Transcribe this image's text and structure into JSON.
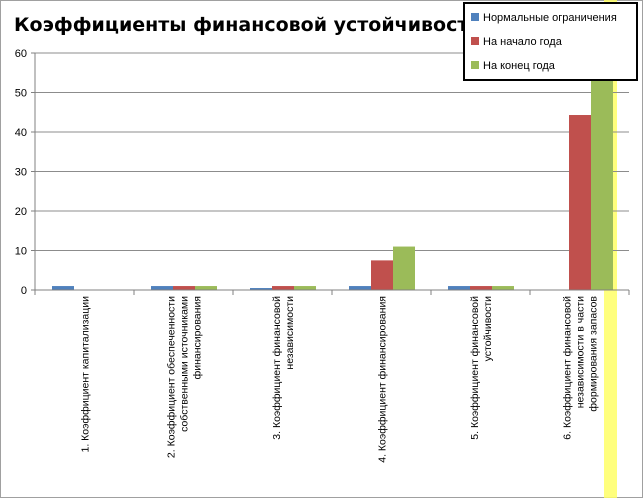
{
  "chart_data": {
    "type": "bar",
    "title": "Коэффициенты финансовой устойчивости",
    "xlabel": "",
    "ylabel": "",
    "ylim": [
      0,
      60
    ],
    "yticks": [
      0,
      10,
      20,
      30,
      40,
      50,
      60
    ],
    "grid": true,
    "legend_position": "top-right",
    "categories": [
      [
        "1. Коэффициент капитализации"
      ],
      [
        "2. Коэффициент обеспеченности",
        "собственными источниками",
        "финансирования"
      ],
      [
        "3. Коэффициент финансовой",
        "независимости"
      ],
      [
        "4. Коэффициент финансирования"
      ],
      [
        "5. Коэффициент финансовой",
        "устойчивости"
      ],
      [
        "6. Коэффициент финансовой",
        "независимости в части",
        "формирования запасов"
      ]
    ],
    "series": [
      {
        "name": "Нормальные ограничения",
        "color": "#4F81BD",
        "values": [
          1,
          1,
          0.5,
          1,
          1,
          0
        ]
      },
      {
        "name": "На начало года",
        "color": "#C0504D",
        "values": [
          0,
          1,
          1,
          7.5,
          1,
          44.3
        ]
      },
      {
        "name": "На конец года",
        "color": "#9BBB59",
        "values": [
          0,
          1,
          1,
          11,
          1,
          54
        ]
      }
    ]
  }
}
